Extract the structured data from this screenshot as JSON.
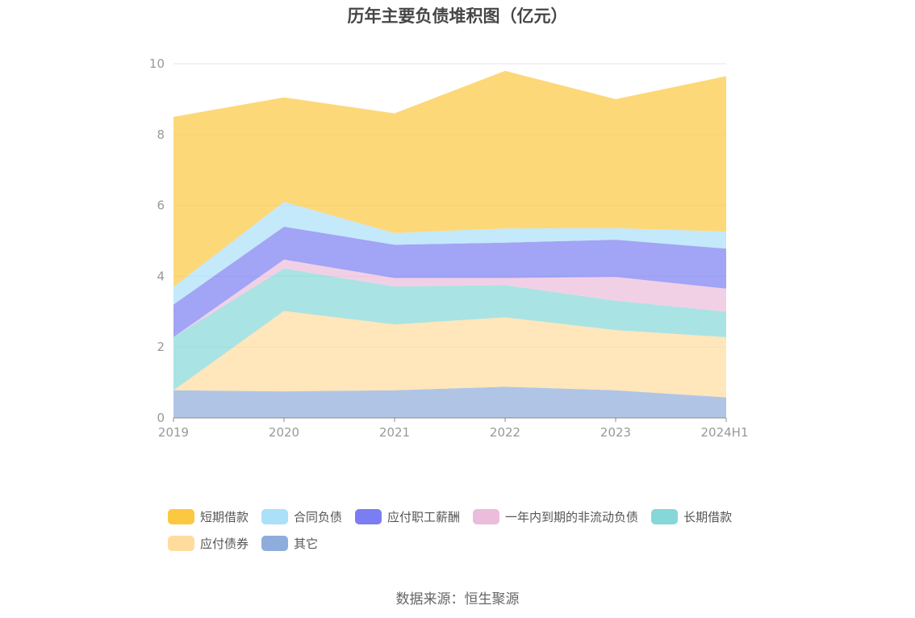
{
  "chart_data": {
    "type": "area",
    "stacked": true,
    "title": "历年主要负债堆积图（亿元）",
    "categories": [
      "2019",
      "2020",
      "2021",
      "2022",
      "2023",
      "2024H1"
    ],
    "ylim": [
      0,
      10
    ],
    "yticks": [
      "0",
      "2",
      "4",
      "6",
      "8",
      "10"
    ],
    "grid": true,
    "legend_position": "bottom",
    "series": [
      {
        "name": "其它",
        "color": "#8eaddc",
        "values": [
          0.78,
          0.75,
          0.78,
          0.88,
          0.78,
          0.58
        ]
      },
      {
        "name": "应付债券",
        "color": "#ffdc9e",
        "values": [
          0.0,
          2.27,
          1.86,
          1.96,
          1.7,
          1.7
        ]
      },
      {
        "name": "长期借款",
        "color": "#86d7d7",
        "values": [
          1.5,
          1.2,
          1.07,
          0.91,
          0.83,
          0.72
        ]
      },
      {
        "name": "一年内到期的非流动负债",
        "color": "#ebbcdc",
        "values": [
          0.0,
          0.25,
          0.24,
          0.2,
          0.67,
          0.65
        ]
      },
      {
        "name": "应付职工薪酬",
        "color": "#7b7ef2",
        "values": [
          0.92,
          0.93,
          0.94,
          1.0,
          1.05,
          1.13
        ]
      },
      {
        "name": "合同负债",
        "color": "#aae0f8",
        "values": [
          0.5,
          0.7,
          0.33,
          0.4,
          0.33,
          0.48
        ]
      },
      {
        "name": "短期借款",
        "color": "#fcc840",
        "values": [
          4.8,
          2.95,
          3.38,
          4.45,
          3.64,
          4.39
        ]
      }
    ]
  },
  "legend_order": [
    "短期借款",
    "合同负债",
    "应付职工薪酬",
    "一年内到期的非流动负债",
    "长期借款",
    "应付债券",
    "其它"
  ],
  "source": "数据来源：恒生聚源"
}
